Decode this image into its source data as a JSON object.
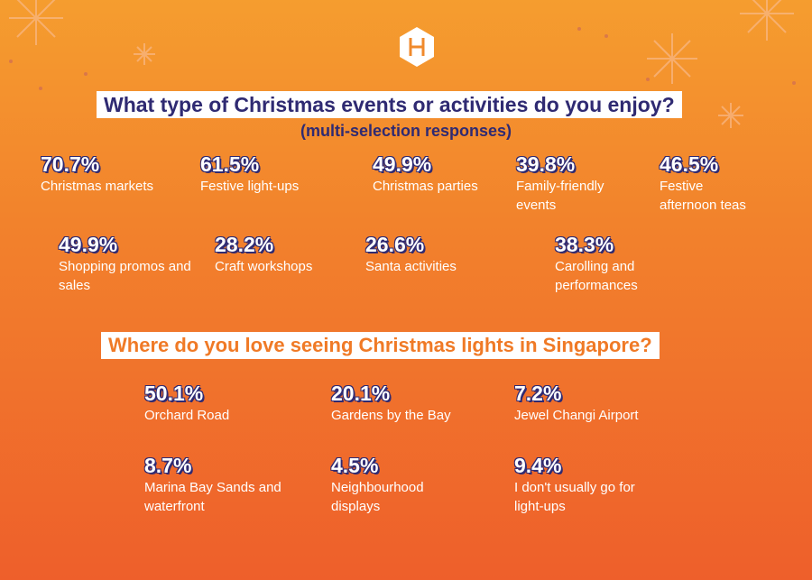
{
  "header": {
    "title": "What type of Christmas events or activities do you enjoy?",
    "subtitle": "(multi-selection responses)"
  },
  "events": [
    {
      "value": "70.7%",
      "label": "Christmas markets"
    },
    {
      "value": "61.5%",
      "label": "Festive light-ups"
    },
    {
      "value": "49.9%",
      "label": "Christmas parties"
    },
    {
      "value": "39.8%",
      "label": "Family-friendly events"
    },
    {
      "value": "46.5%",
      "label": "Festive afternoon teas"
    },
    {
      "value": "49.9%",
      "label": "Shopping promos and sales"
    },
    {
      "value": "28.2%",
      "label": "Craft workshops"
    },
    {
      "value": "26.6%",
      "label": "Santa activities"
    },
    {
      "value": "38.3%",
      "label": "Carolling and performances"
    }
  ],
  "lights": {
    "title": "Where do you love seeing Christmas lights in Singapore?",
    "items": [
      {
        "value": "50.1%",
        "label": "Orchard Road"
      },
      {
        "value": "20.1%",
        "label": "Gardens by the Bay"
      },
      {
        "value": "7.2%",
        "label": "Jewel Changi Airport"
      },
      {
        "value": "8.7%",
        "label": "Marina Bay Sands and waterfront"
      },
      {
        "value": "4.5%",
        "label": "Neighbourhood displays"
      },
      {
        "value": "9.4%",
        "label": "I don't usually go for light-ups"
      }
    ]
  }
}
